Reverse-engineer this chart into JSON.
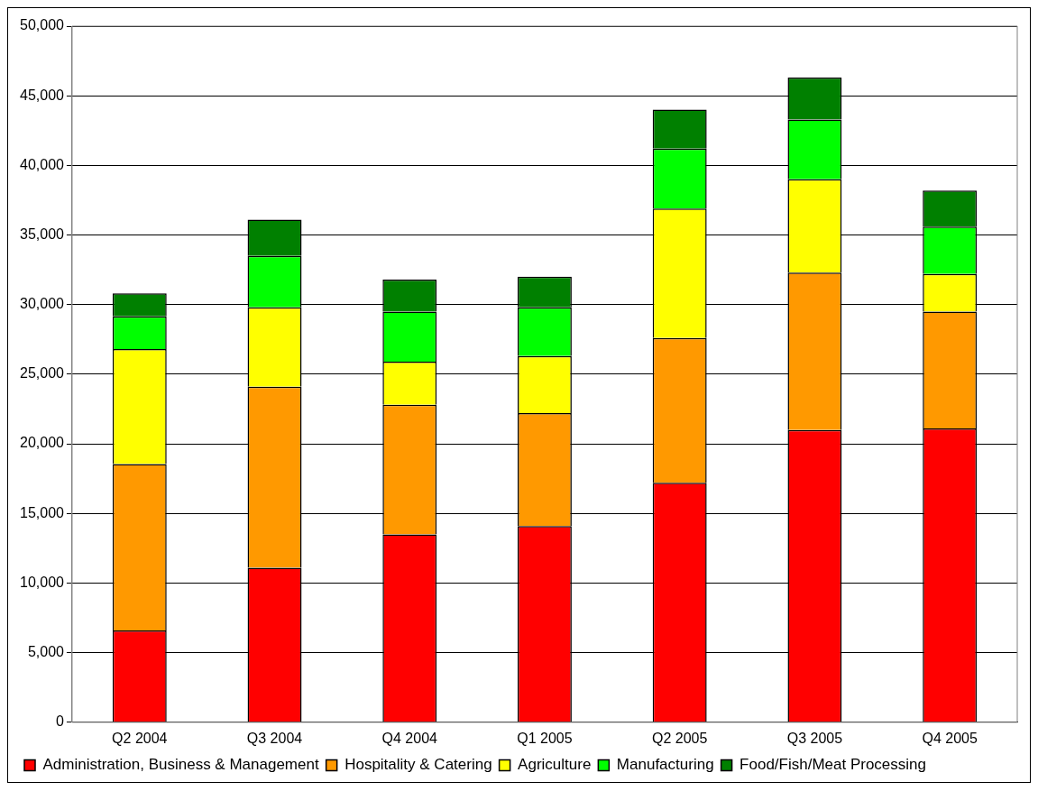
{
  "chart_data": {
    "type": "bar",
    "stacked": true,
    "categories": [
      "Q2 2004",
      "Q3 2004",
      "Q4 2004",
      "Q1 2005",
      "Q2 2005",
      "Q3 2005",
      "Q4 2005"
    ],
    "series": [
      {
        "name": "Administration, Business & Management",
        "color": "#ff0000",
        "values": [
          6600,
          11100,
          13500,
          14100,
          17200,
          21000,
          21100
        ]
      },
      {
        "name": "Hospitality & Catering",
        "color": "#ff9900",
        "values": [
          11950,
          13000,
          9300,
          8100,
          10400,
          11300,
          8400
        ]
      },
      {
        "name": "Agriculture",
        "color": "#ffff00",
        "values": [
          8250,
          5700,
          3100,
          4100,
          9300,
          6700,
          2700
        ]
      },
      {
        "name": "Manufacturing",
        "color": "#00ff00",
        "values": [
          2350,
          3700,
          3600,
          3500,
          4300,
          4300,
          3400
        ]
      },
      {
        "name": "Food/Fish/Meat Processing",
        "color": "#008000",
        "values": [
          1650,
          2600,
          2300,
          2200,
          2800,
          3000,
          2600
        ]
      }
    ],
    "ylim": [
      0,
      50000
    ],
    "yticks": [
      0,
      {
        "value": 5000,
        "label": "5,000"
      },
      {
        "value": 10000,
        "label": "10,000"
      },
      {
        "value": 15000,
        "label": "15,000"
      },
      {
        "value": 20000,
        "label": "20,000"
      },
      {
        "value": 25000,
        "label": "25,000"
      },
      {
        "value": 30000,
        "label": "30,000"
      },
      {
        "value": 35000,
        "label": "35,000"
      },
      {
        "value": 40000,
        "label": "40,000"
      },
      {
        "value": 45000,
        "label": "45,000"
      },
      {
        "value": 50000,
        "label": "50,000"
      }
    ],
    "grid": "y",
    "legend": "bottom"
  }
}
